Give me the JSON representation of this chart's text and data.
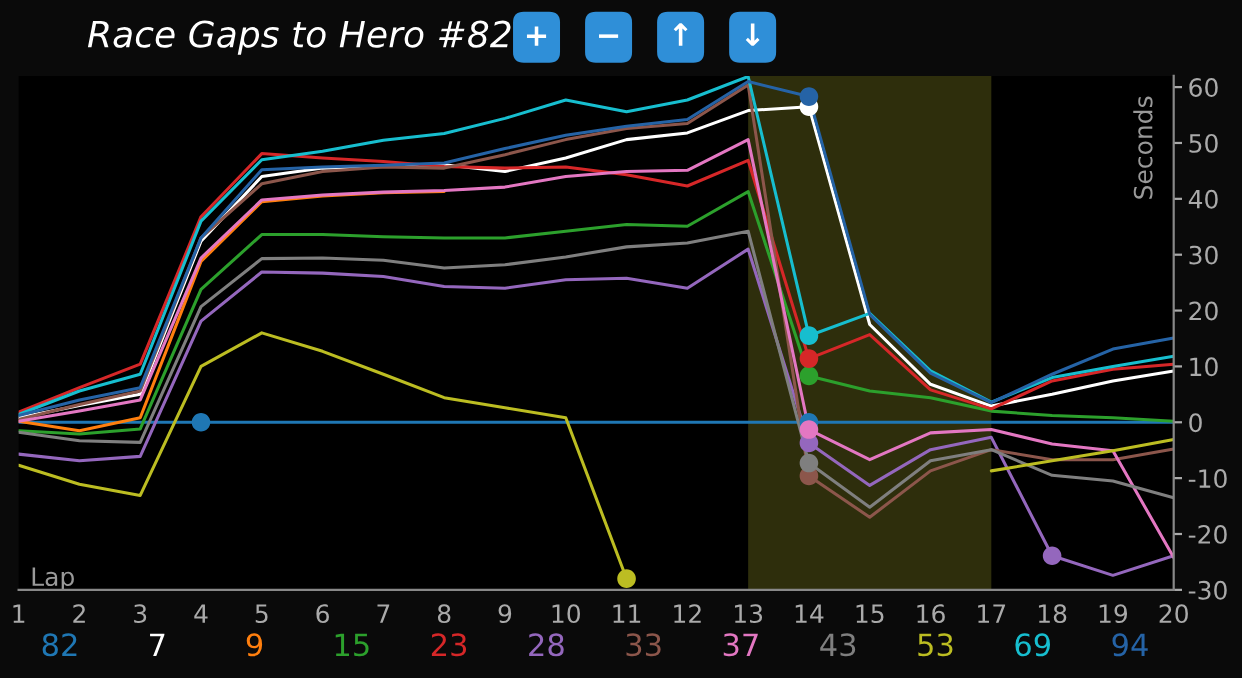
{
  "chart_data": {
    "type": "line",
    "title": "Race Gaps to Hero #82",
    "xlabel": "Lap",
    "ylabel": "Seconds",
    "annotations": [
      "+",
      "−",
      "↑",
      "↓"
    ],
    "x": [
      1,
      2,
      3,
      4,
      5,
      6,
      7,
      8,
      9,
      10,
      11,
      12,
      13,
      14,
      15,
      16,
      17,
      18,
      19,
      20
    ],
    "series": [
      {
        "name": "82",
        "color": "#1f77b4",
        "values": [
          0,
          0,
          0,
          0,
          0,
          0,
          0,
          0,
          0,
          0,
          0,
          0,
          0,
          0,
          0,
          0,
          0,
          0,
          0,
          0
        ]
      },
      {
        "name": "7",
        "color": "#ffffff",
        "values": [
          0.8,
          3,
          5,
          32.4,
          44,
          45.5,
          45.8,
          46.1,
          44.9,
          47.3,
          50.6,
          51.8,
          55.8,
          56.5,
          17.5,
          6.8,
          2.9,
          5,
          7.4,
          9.2
        ]
      },
      {
        "name": "9",
        "color": "#ff7f0e",
        "values": [
          0.2,
          -1.5,
          0.8,
          28.8,
          39.5,
          40.5,
          41.1,
          41.3,
          null,
          null,
          null,
          null,
          null,
          null,
          null,
          null,
          null,
          null,
          null,
          null
        ]
      },
      {
        "name": "15",
        "color": "#2ca02c",
        "values": [
          -1.5,
          -2.1,
          -1.2,
          23.8,
          33.6,
          33.6,
          33.2,
          33,
          33,
          34.2,
          35.4,
          35.1,
          41.3,
          8.3,
          5.6,
          4.4,
          2,
          1.2,
          0.8,
          0.2
        ]
      },
      {
        "name": "23",
        "color": "#d62728",
        "values": [
          1.8,
          6.2,
          10.4,
          36.8,
          48.1,
          47.3,
          46.7,
          45.8,
          45.5,
          45.7,
          44.3,
          42.3,
          46.9,
          11.4,
          15.7,
          5.8,
          2.4,
          7.4,
          9.5,
          10.4
        ]
      },
      {
        "name": "28",
        "color": "#9467bd",
        "values": [
          -5.7,
          -6.9,
          -6.1,
          18.1,
          26.9,
          26.7,
          26.1,
          24.3,
          24,
          25.5,
          25.8,
          24,
          31,
          -3.7,
          -11.3,
          -4.9,
          -2.7,
          -23.9,
          -27.4,
          -23.9
        ]
      },
      {
        "name": "33",
        "color": "#8c564b",
        "values": [
          0.5,
          3.2,
          5.6,
          33,
          42.7,
          44.9,
          45.7,
          45.5,
          47.9,
          50.6,
          52.6,
          53.5,
          60.4,
          -9.6,
          -17,
          -8.7,
          -4.9,
          -6.7,
          -6.7,
          -4.8
        ]
      },
      {
        "name": "37",
        "color": "#e377c2",
        "values": [
          0.2,
          2,
          4,
          29.4,
          39.8,
          40.7,
          41.2,
          41.5,
          42.1,
          44,
          44.9,
          45.1,
          50.6,
          -1.3,
          -6.7,
          -1.9,
          -1.3,
          -3.9,
          -5.1,
          -24.2
        ]
      },
      {
        "name": "43",
        "color": "#7f7f7f",
        "values": [
          -1.8,
          -3.3,
          -3.6,
          20.7,
          29.3,
          29.4,
          29,
          27.6,
          28.2,
          29.6,
          31.4,
          32.1,
          34.2,
          -7.3,
          -15.2,
          -6.9,
          -4.9,
          -9.5,
          -10.5,
          -13.5
        ]
      },
      {
        "name": "53",
        "color": "#bcbd22",
        "values": [
          -7.7,
          -11.1,
          -13.1,
          10,
          16,
          12.7,
          8.6,
          4.4,
          2.6,
          0.8,
          -28,
          null,
          null,
          null,
          null,
          null,
          -8.7,
          -6.9,
          -5.1,
          -3.1
        ]
      },
      {
        "name": "69",
        "color": "#17becf",
        "values": [
          1.4,
          5.6,
          8.6,
          36,
          47,
          48.5,
          50.5,
          51.7,
          54.4,
          57.7,
          55.6,
          57.7,
          61.9,
          15.5,
          19.5,
          9.2,
          3.6,
          8,
          10,
          11.8
        ]
      },
      {
        "name": "94",
        "color": "#2563a6",
        "values": [
          1.2,
          4,
          6.2,
          33,
          45.2,
          45.7,
          46,
          46.4,
          49,
          51.4,
          53,
          54.2,
          61,
          58.3,
          19.3,
          8.8,
          3.5,
          8.6,
          13.1,
          15.1
        ]
      },
      {
        "type": "scatter",
        "marker": "circle",
        "x": [
          4,
          14,
          14,
          14,
          14,
          14,
          14,
          14,
          14,
          14,
          11,
          18
        ],
        "values": [
          0,
          0,
          56.5,
          8.3,
          11.4,
          -3.7,
          -9.6,
          -1.3,
          -7.3,
          15.5,
          -28,
          -23.9
        ],
        "colors": [
          "#1f77b4",
          "#1f77b4",
          "#ffffff",
          "#2ca02c",
          "#d62728",
          "#9467bd",
          "#8c564b",
          "#e377c2",
          "#7f7f7f",
          "#17becf",
          "#bcbd22",
          "#9467bd"
        ]
      },
      {
        "type": "scatter",
        "marker": "circle",
        "x": [
          14
        ],
        "values": [
          58.3
        ],
        "colors": [
          "#2563a6"
        ]
      }
    ],
    "bands": [
      {
        "axis": "x",
        "from": 13,
        "to": 17,
        "color": "#2e2e0c"
      }
    ],
    "xlim": [
      1,
      20
    ],
    "xticks": [
      1,
      2,
      3,
      4,
      5,
      6,
      7,
      8,
      9,
      10,
      11,
      12,
      13,
      14,
      15,
      16,
      17,
      18,
      19,
      20
    ],
    "ylim": [
      -30,
      62
    ],
    "yticks": [
      -30,
      -20,
      -10,
      0,
      10,
      20,
      30,
      40,
      50,
      60
    ],
    "grid": false,
    "legend": "bottom",
    "marker": "none",
    "line_style": "solid"
  }
}
